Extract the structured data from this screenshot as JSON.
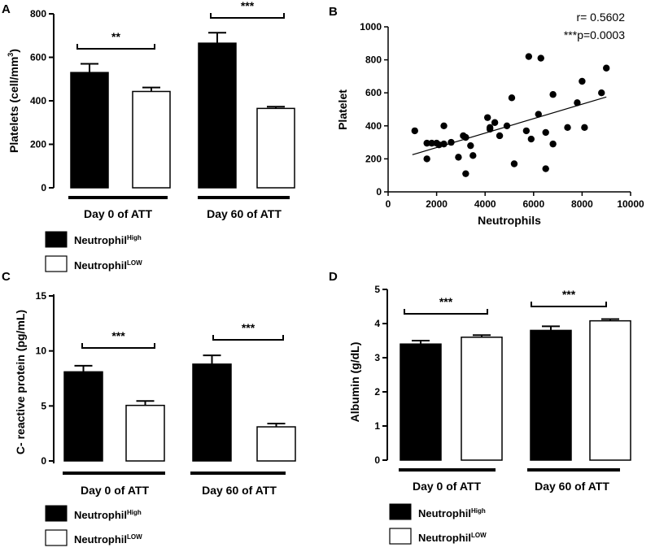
{
  "colors": {
    "high": "#000000",
    "low": "#ffffff",
    "stroke": "#000000"
  },
  "legend": {
    "high_base": "Neutrophil",
    "high_sup": "High",
    "low_base": "Neutrophil",
    "low_sup": "LOW"
  },
  "chart_data": [
    {
      "panel": "A",
      "type": "bar",
      "ylabel": "Platelets (cell/mm",
      "ylabel_sup": "3",
      "ylabel_close": ")",
      "ylim": [
        0,
        800
      ],
      "yticks": [
        "0",
        "200",
        "400",
        "600",
        "800"
      ],
      "groups": [
        "Day 0 of ATT",
        "Day 60 of ATT"
      ],
      "series": [
        {
          "name": "Neutrophil High",
          "values": [
            530,
            665
          ],
          "errors": [
            40,
            48
          ]
        },
        {
          "name": "Neutrophil LOW",
          "values": [
            443,
            365
          ],
          "errors": [
            18,
            8
          ]
        }
      ],
      "significance": [
        "**",
        "***"
      ]
    },
    {
      "panel": "B",
      "type": "scatter",
      "xlabel": "Neutrophils",
      "ylabel": "Platelet",
      "xlim": [
        0,
        10000
      ],
      "ylim": [
        0,
        1000
      ],
      "xticks": [
        "0",
        "2000",
        "4000",
        "6000",
        "8000",
        "10000"
      ],
      "yticks": [
        "0",
        "200",
        "400",
        "600",
        "800",
        "1000"
      ],
      "annotation_r": "r= 0.5602",
      "annotation_p": "***p=0.0003",
      "trend": {
        "x": [
          1000,
          9000
        ],
        "y": [
          225,
          575
        ]
      },
      "points": [
        [
          1100,
          370
        ],
        [
          1600,
          295
        ],
        [
          1600,
          200
        ],
        [
          1800,
          295
        ],
        [
          2000,
          295
        ],
        [
          2100,
          285
        ],
        [
          2300,
          400
        ],
        [
          2300,
          290
        ],
        [
          2600,
          300
        ],
        [
          2900,
          210
        ],
        [
          3100,
          340
        ],
        [
          3200,
          330
        ],
        [
          3200,
          110
        ],
        [
          3400,
          280
        ],
        [
          3500,
          220
        ],
        [
          4100,
          450
        ],
        [
          4200,
          380
        ],
        [
          4200,
          390
        ],
        [
          4400,
          420
        ],
        [
          4600,
          340
        ],
        [
          4900,
          400
        ],
        [
          5100,
          570
        ],
        [
          5200,
          170
        ],
        [
          5700,
          370
        ],
        [
          5800,
          820
        ],
        [
          5900,
          320
        ],
        [
          6200,
          470
        ],
        [
          6300,
          810
        ],
        [
          6500,
          140
        ],
        [
          6500,
          360
        ],
        [
          6800,
          590
        ],
        [
          6800,
          290
        ],
        [
          7400,
          390
        ],
        [
          7800,
          540
        ],
        [
          8000,
          670
        ],
        [
          8100,
          390
        ],
        [
          8800,
          600
        ],
        [
          9000,
          750
        ]
      ]
    },
    {
      "panel": "C",
      "type": "bar",
      "ylabel": "C- reactive protein (pg/mL)",
      "ylim": [
        0,
        15
      ],
      "yticks": [
        "0",
        "5",
        "10",
        "15"
      ],
      "groups": [
        "Day 0 of ATT",
        "Day 60 of ATT"
      ],
      "series": [
        {
          "name": "Neutrophil High",
          "values": [
            8.1,
            8.8
          ],
          "errors": [
            0.55,
            0.8
          ]
        },
        {
          "name": "Neutrophil LOW",
          "values": [
            5.05,
            3.1
          ],
          "errors": [
            0.4,
            0.3
          ]
        }
      ],
      "significance": [
        "***",
        "***"
      ]
    },
    {
      "panel": "D",
      "type": "bar",
      "ylabel": "Albumin (g/dL)",
      "ylim": [
        0,
        5
      ],
      "yticks": [
        "0",
        "1",
        "2",
        "3",
        "4",
        "5"
      ],
      "groups": [
        "Day 0 of ATT",
        "Day 60 of ATT"
      ],
      "series": [
        {
          "name": "Neutrophil High",
          "values": [
            3.4,
            3.8
          ],
          "errors": [
            0.1,
            0.12
          ]
        },
        {
          "name": "Neutrophil LOW",
          "values": [
            3.6,
            4.08
          ],
          "errors": [
            0.06,
            0.05
          ]
        }
      ],
      "significance": [
        "***",
        "***"
      ]
    }
  ]
}
